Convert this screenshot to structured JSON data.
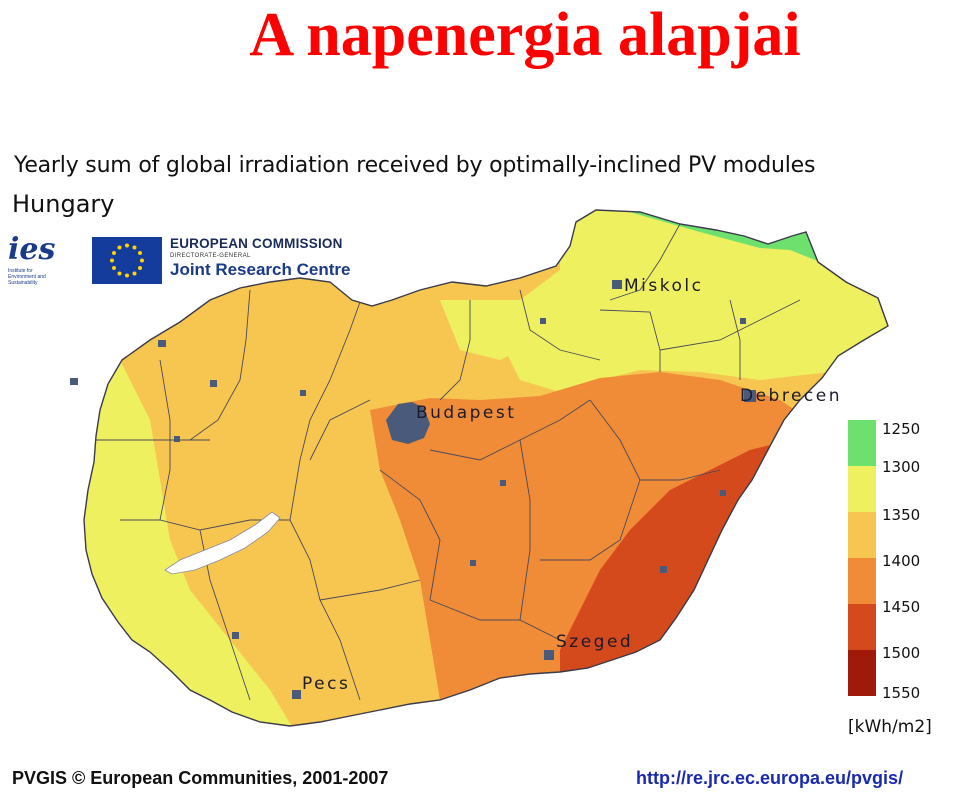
{
  "slide": {
    "title": "A napenergia alapjai"
  },
  "map": {
    "heading": "Yearly sum of global irradiation received by optimally-inclined PV modules",
    "country": "Hungary",
    "logos": {
      "ies": "ies",
      "ies_sub": "Institute for Environment and Sustainability",
      "ec_line1": "EUROPEAN COMMISSION",
      "ec_line2": "DIRECTORATE-GENERAL",
      "ec_line3": "Joint Research Centre"
    },
    "cities": {
      "miskolc": "Miskolc",
      "budapest": "Budapest",
      "debrecen": "Debrecen",
      "szeged": "Szeged",
      "pecs": "Pecs"
    },
    "colors": {
      "c1250": "#6ee06e",
      "c1300": "#eef060",
      "c1350": "#f6c650",
      "c1400": "#f08c38",
      "c1450": "#d44a1c",
      "c1500": "#a01a0c",
      "white_lake": "#ffffff",
      "urban": "#4a5a7a"
    }
  },
  "legend": {
    "items": [
      {
        "label": "1250",
        "color": "#6ee06e"
      },
      {
        "label": "1300",
        "color": "#eef060"
      },
      {
        "label": "1350",
        "color": "#f6c650"
      },
      {
        "label": "1400",
        "color": "#f08c38"
      },
      {
        "label": "1450",
        "color": "#d44a1c"
      },
      {
        "label": "1500",
        "color": "#a01a0c"
      },
      {
        "label": "1550",
        "color": ""
      }
    ],
    "unit": "[kWh/m2]"
  },
  "footer": {
    "copyright": "PVGIS © European Communities, 2001-2007",
    "url": "http://re.jrc.ec.europa.eu/pvgis/"
  }
}
